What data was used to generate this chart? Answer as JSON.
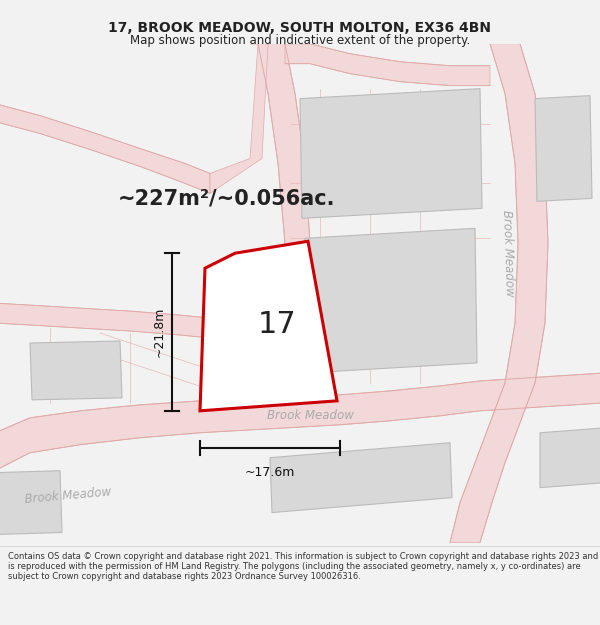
{
  "title": "17, BROOK MEADOW, SOUTH MOLTON, EX36 4BN",
  "subtitle": "Map shows position and indicative extent of the property.",
  "area_text": "~227m²/~0.056ac.",
  "property_number": "17",
  "dim_vertical": "~21.8m",
  "dim_horizontal": "~17.6m",
  "street_label_bottom_left": "Brook Meadow",
  "street_label_right": "Brook Meadow",
  "street_label_bottom": "Brook Meadow",
  "footer_text": "Contains OS data © Crown copyright and database right 2021. This information is subject to Crown copyright and database rights 2023 and is reproduced with the permission of HM Land Registry. The polygons (including the associated geometry, namely x, y co-ordinates) are subject to Crown copyright and database rights 2023 Ordnance Survey 100026316.",
  "bg_color": "#f2f2f2",
  "map_bg": "#f8f8f8",
  "road_fill": "#f2d8d8",
  "road_edge": "#e0aaaa",
  "building_fill": "#d8d8d8",
  "building_edge": "#bbbbbb",
  "property_edge": "#cc0000",
  "property_fill": "#ffffff",
  "dim_color": "#111111",
  "text_color": "#222222",
  "street_color": "#aaaaaa",
  "footer_bg": "#ffffff",
  "footer_text_color": "#333333"
}
